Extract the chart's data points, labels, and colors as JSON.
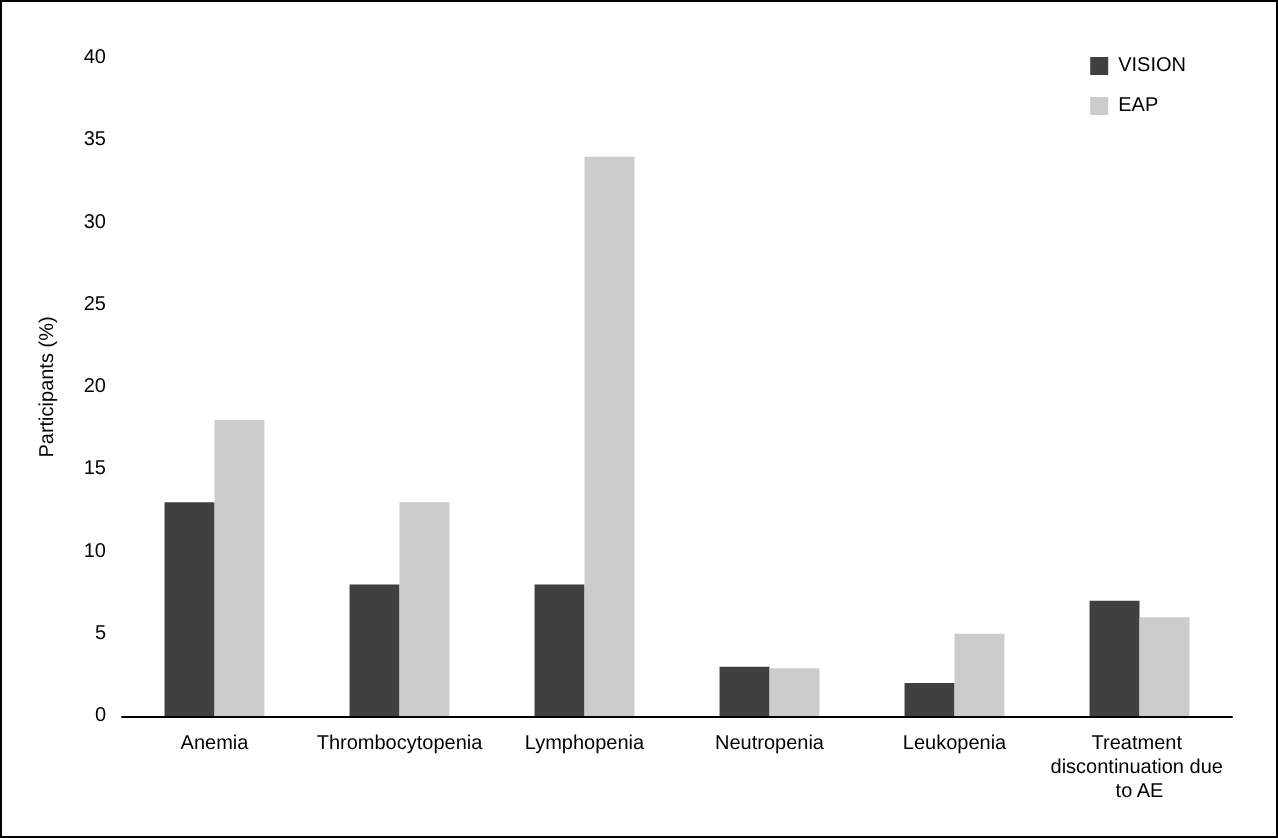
{
  "chart_data": {
    "type": "bar",
    "ylabel": "Participants (%)",
    "categories": [
      "Anemia",
      "Thrombocytopenia",
      "Lymphopenia",
      "Neutropenia",
      "Leukopenia",
      "Treatment discontinuation due to AE"
    ],
    "series": [
      {
        "name": "VISION",
        "color": "#404040",
        "values": [
          13,
          8,
          8,
          3,
          2,
          7
        ]
      },
      {
        "name": "EAP",
        "color": "#cccccc",
        "values": [
          18,
          13,
          34,
          2.9,
          5,
          6
        ]
      }
    ],
    "ylim": [
      0,
      40
    ],
    "yticks": [
      0,
      5,
      10,
      15,
      20,
      25,
      30,
      35,
      40
    ],
    "grid": false,
    "legend": "top right"
  }
}
